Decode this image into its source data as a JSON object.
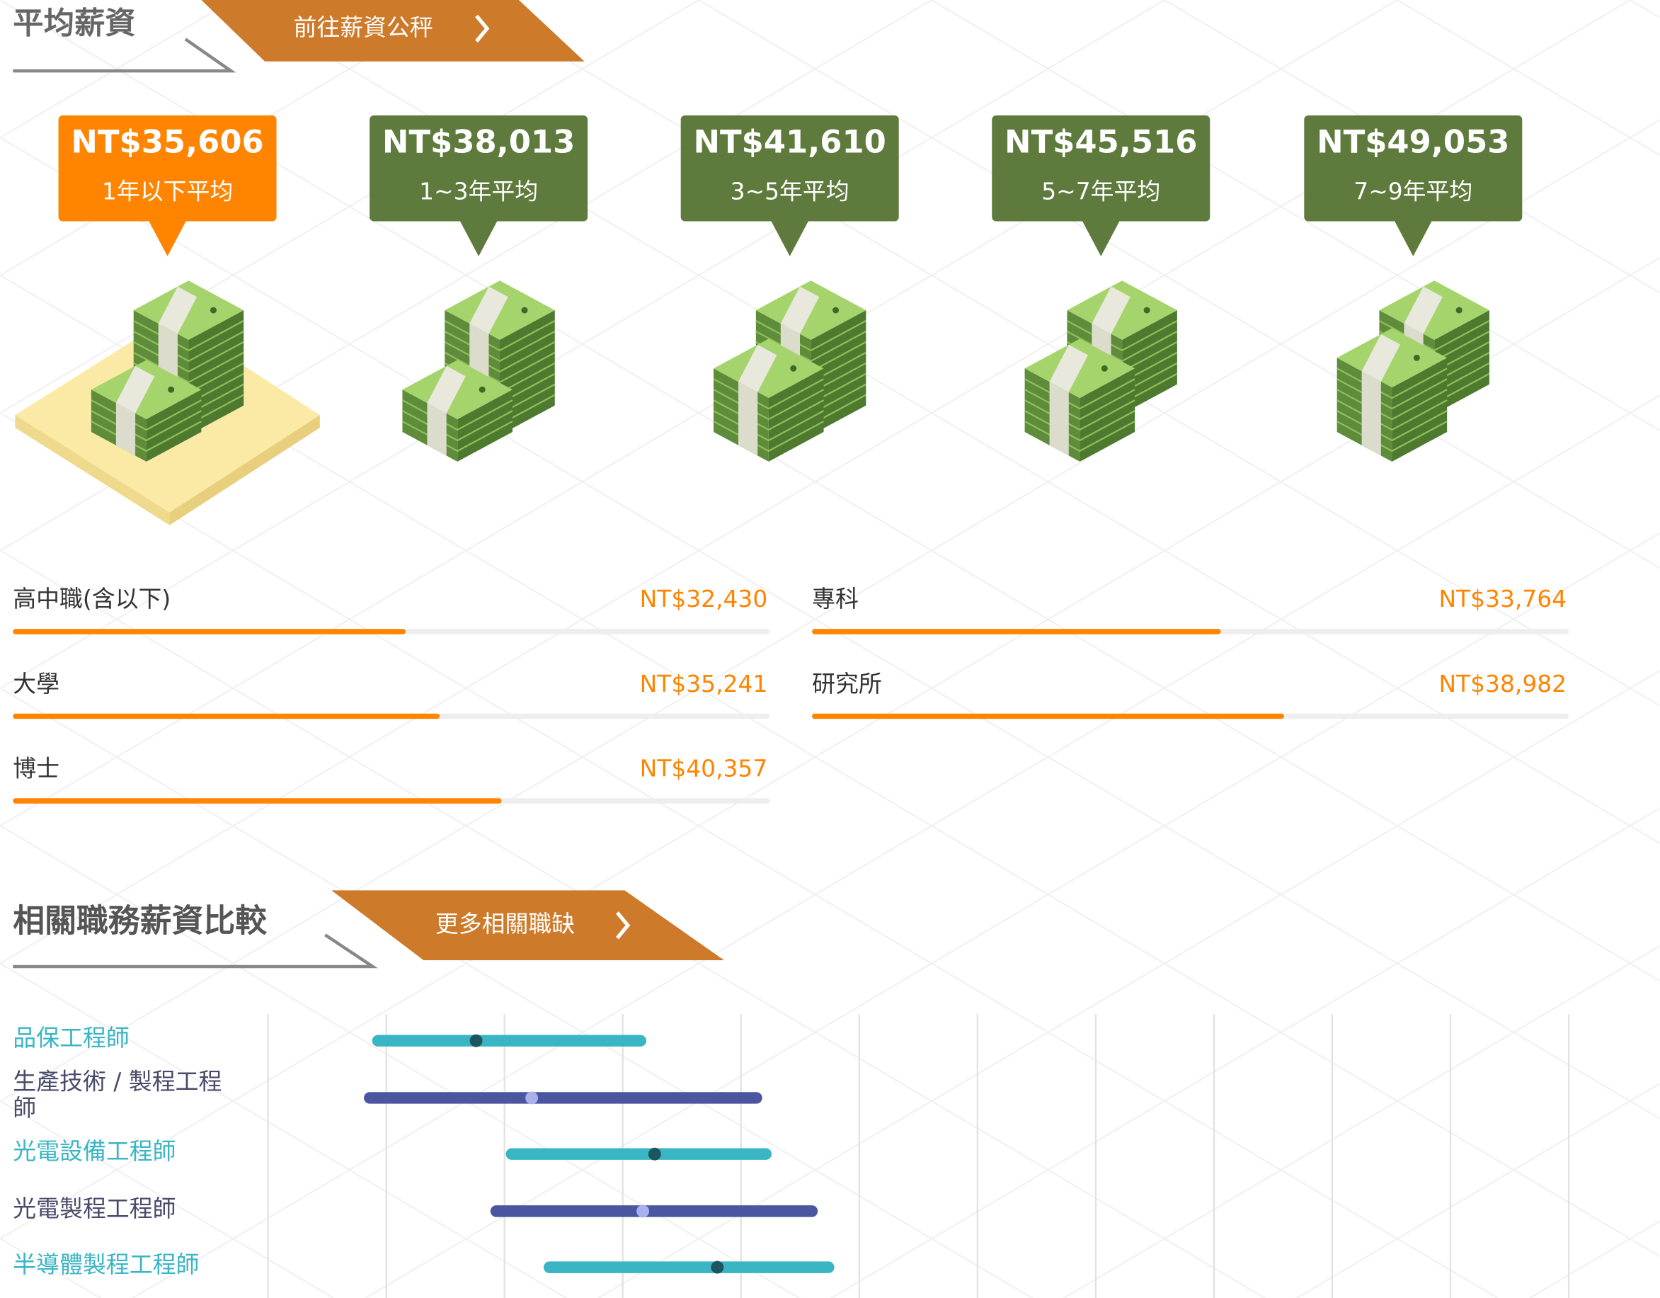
{
  "salary_section": {
    "title": "平均薪資",
    "button": "前往薪資公秤"
  },
  "experience": [
    {
      "amount": "NT$35,606",
      "label": "1年以下平均"
    },
    {
      "amount": "NT$38,013",
      "label": "1~3年平均"
    },
    {
      "amount": "NT$41,610",
      "label": "3~5年平均"
    },
    {
      "amount": "NT$45,516",
      "label": "5~7年平均"
    },
    {
      "amount": "NT$49,053",
      "label": "7~9年平均"
    }
  ],
  "education": {
    "categories": [
      "高中職(含以下)",
      "專科",
      "大學",
      "研究所",
      "博士"
    ],
    "values": [
      32430,
      33764,
      35241,
      38982,
      40357
    ],
    "value_labels": [
      "NT$32,430",
      "NT$33,764",
      "NT$35,241",
      "NT$38,982",
      "NT$40,357"
    ],
    "xlim": [
      0,
      62500
    ],
    "color": "#ff8400"
  },
  "jobs_section": {
    "title": "相關職務薪資比較",
    "button": "更多相關職缺"
  },
  "job_ranges": {
    "categories": [
      "品保工程師",
      "生產技術 / 製程工程師",
      "光電設備工程師",
      "光電製程工程師",
      "半導體製程工程師"
    ],
    "min": [
      9300,
      8600,
      20600,
      19300,
      23800
    ],
    "max": [
      31500,
      41300,
      42100,
      46000,
      47400
    ],
    "median": [
      17600,
      22300,
      32700,
      31700,
      38000
    ],
    "colors": [
      "#3ab5c4",
      "#4a56a0"
    ],
    "xlim": [
      0,
      110000
    ],
    "xticks": [
      0,
      10000,
      20000,
      30000,
      40000,
      50000,
      60000,
      70000,
      80000,
      90000,
      100000,
      110000
    ],
    "grid": true
  }
}
